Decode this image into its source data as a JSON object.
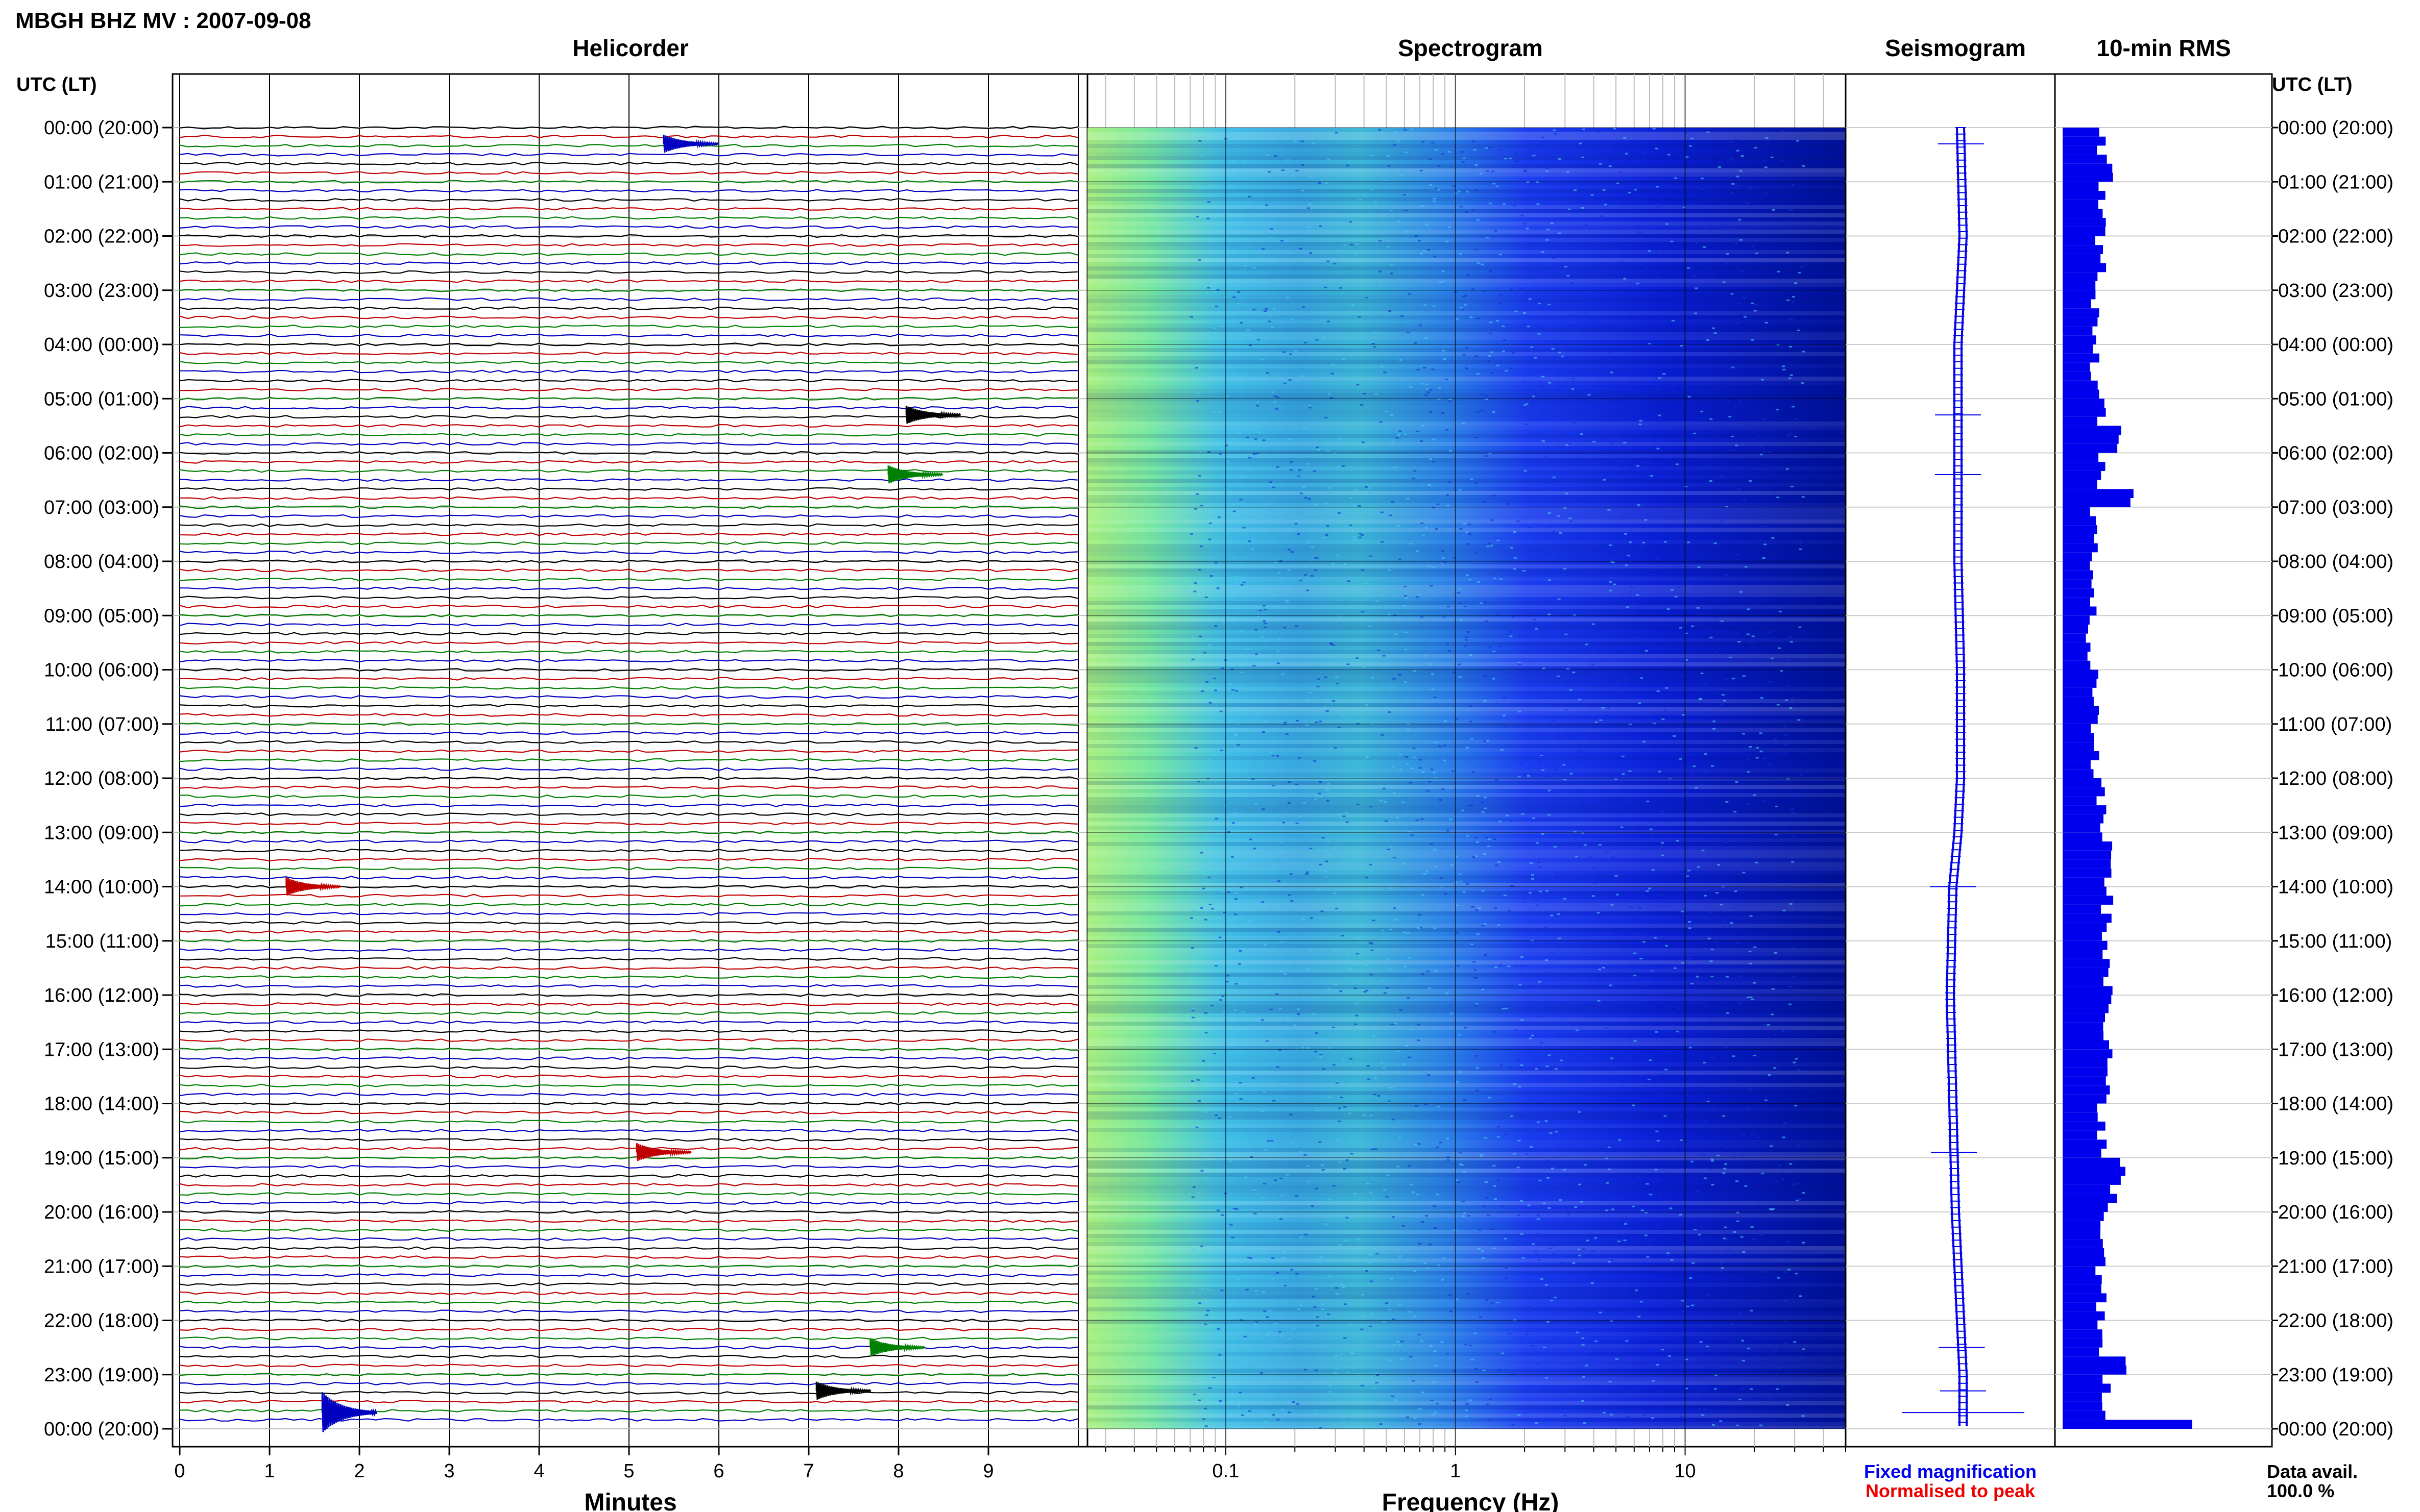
{
  "title": "MBGH BHZ MV : 2007-09-08",
  "panels": {
    "helicorder": "Helicorder",
    "spectrogram": "Spectrogram",
    "seismogram": "Seismogram",
    "rms": "10-min RMS"
  },
  "time_axis": {
    "label": "UTC (LT)",
    "ticks": [
      "00:00 (20:00)",
      "01:00 (21:00)",
      "02:00 (22:00)",
      "03:00 (23:00)",
      "04:00 (00:00)",
      "05:00 (01:00)",
      "06:00 (02:00)",
      "07:00 (03:00)",
      "08:00 (04:00)",
      "09:00 (05:00)",
      "10:00 (06:00)",
      "11:00 (07:00)",
      "12:00 (08:00)",
      "13:00 (09:00)",
      "14:00 (10:00)",
      "15:00 (11:00)",
      "16:00 (12:00)",
      "17:00 (13:00)",
      "18:00 (14:00)",
      "19:00 (15:00)",
      "20:00 (16:00)",
      "21:00 (17:00)",
      "22:00 (18:00)",
      "23:00 (19:00)",
      "00:00 (20:00)"
    ]
  },
  "helicorder_axis": {
    "label": "Minutes",
    "ticks": [
      "0",
      "1",
      "2",
      "3",
      "4",
      "5",
      "6",
      "7",
      "8",
      "9"
    ],
    "range": [
      0,
      10
    ],
    "line_colors": [
      "#000000",
      "#c00000",
      "#008000",
      "#0000c0"
    ]
  },
  "spectrogram_axis": {
    "label": "Frequency (Hz)",
    "scale": "log",
    "range": [
      0.025,
      50
    ],
    "ticks": [
      "0.1",
      "1",
      "10"
    ]
  },
  "legend": {
    "fixed": "Fixed magnification",
    "normalised": "Normalised to peak",
    "fixed_color": "#0000ee",
    "normalised_color": "#ee0000"
  },
  "data_avail": {
    "label": "Data avail.",
    "value": "100.0 %"
  },
  "chart_data": {
    "type": "heatmap",
    "title": "MBGH BHZ MV : 2007-09-08",
    "grid": true,
    "helicorder_events": [
      {
        "hour": 0.3,
        "minute": 5.5,
        "color": "blue"
      },
      {
        "hour": 5.3,
        "minute": 8.2,
        "color": "black"
      },
      {
        "hour": 6.4,
        "minute": 8.0,
        "color": "green"
      },
      {
        "hour": 14.0,
        "minute": 1.3,
        "color": "red"
      },
      {
        "hour": 18.9,
        "minute": 5.2,
        "color": "red"
      },
      {
        "hour": 22.5,
        "minute": 7.8,
        "color": "green"
      },
      {
        "hour": 23.3,
        "minute": 7.2,
        "color": "black"
      },
      {
        "hour": 23.7,
        "minute": 1.7,
        "color": "blue"
      }
    ],
    "rms_10min": {
      "hour": [
        0.0,
        0.5,
        1.0,
        2.0,
        3.0,
        4.0,
        5.0,
        5.4,
        6.0,
        6.6,
        7.0,
        8.0,
        9.0,
        10.0,
        11.0,
        12.0,
        13.0,
        14.0,
        15.0,
        16.0,
        17.0,
        18.0,
        18.9,
        19.2,
        20.0,
        21.0,
        22.0,
        22.6,
        23.0,
        23.5,
        23.8
      ],
      "value": [
        0.3,
        0.4,
        0.3,
        0.3,
        0.25,
        0.25,
        0.3,
        0.4,
        0.3,
        0.5,
        0.25,
        0.25,
        0.2,
        0.25,
        0.25,
        0.3,
        0.35,
        0.35,
        0.35,
        0.35,
        0.35,
        0.3,
        0.5,
        0.4,
        0.3,
        0.3,
        0.3,
        0.55,
        0.35,
        0.3,
        1.0
      ]
    },
    "seismogram_trend": {
      "hour": [
        0,
        2,
        4,
        6,
        8,
        10,
        12,
        13,
        14,
        16,
        18,
        20,
        21,
        22,
        23,
        24
      ],
      "offset": [
        0.0,
        0.05,
        -0.05,
        -0.05,
        -0.05,
        0.0,
        0.0,
        -0.05,
        -0.15,
        -0.2,
        -0.15,
        -0.1,
        -0.05,
        0.0,
        0.05,
        0.05
      ]
    }
  }
}
